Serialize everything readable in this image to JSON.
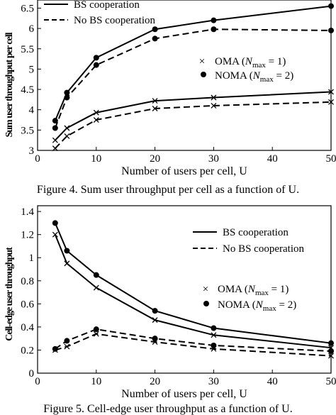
{
  "chart_data": [
    {
      "type": "line",
      "caption": "Figure 4.  Sum user throughput per cell as a function of U.",
      "xlabel": "Number of users per cell, U",
      "ylabel": "Sum user throughput per cell",
      "xlim": [
        0,
        50
      ],
      "ylim": [
        3,
        6.7
      ],
      "xticks": [
        0,
        10,
        20,
        30,
        40,
        50
      ],
      "yticks": [
        3,
        3.5,
        4,
        4.5,
        5,
        5.5,
        6,
        6.5
      ],
      "grid": false,
      "legend_lines": [
        {
          "label": "BS cooperation",
          "style": "solid"
        },
        {
          "label": "No BS cooperation",
          "style": "dashed"
        }
      ],
      "legend_markers": [
        {
          "label": "OMA (N_max = 1)",
          "marker": "x"
        },
        {
          "label": "NOMA (N_max = 2)",
          "marker": "dot"
        }
      ],
      "x": [
        3,
        5,
        10,
        20,
        30,
        50
      ],
      "series": [
        {
          "scheme": "NOMA",
          "style": "solid",
          "marker": "dot",
          "values": [
            3.73,
            4.42,
            5.28,
            5.98,
            6.2,
            6.55
          ]
        },
        {
          "scheme": "NOMA",
          "style": "dashed",
          "marker": "dot",
          "values": [
            3.55,
            4.3,
            5.1,
            5.75,
            5.98,
            5.95
          ]
        },
        {
          "scheme": "OMA",
          "style": "solid",
          "marker": "x",
          "values": [
            3.25,
            3.55,
            3.93,
            4.22,
            4.3,
            4.44
          ]
        },
        {
          "scheme": "OMA",
          "style": "dashed",
          "marker": "x",
          "values": [
            3.05,
            3.35,
            3.75,
            4.03,
            4.1,
            4.19
          ]
        }
      ]
    },
    {
      "type": "line",
      "caption": "Figure 5.  Cell-edge user throughput as a function of U.",
      "xlabel": "Number of users per cell, U",
      "ylabel": "Cell-edge user throughput",
      "xlim": [
        0,
        50
      ],
      "ylim": [
        0,
        1.45
      ],
      "xticks": [
        0,
        10,
        20,
        30,
        40,
        50
      ],
      "yticks": [
        0,
        0.2,
        0.4,
        0.6,
        0.8,
        1,
        1.2,
        1.4
      ],
      "grid": false,
      "legend_lines": [
        {
          "label": "BS cooperation",
          "style": "solid"
        },
        {
          "label": "No BS cooperation",
          "style": "dashed"
        }
      ],
      "legend_markers": [
        {
          "label": "OMA (N_max = 1)",
          "marker": "x"
        },
        {
          "label": "NOMA (N_max = 2)",
          "marker": "dot"
        }
      ],
      "x": [
        3,
        5,
        10,
        20,
        30,
        50
      ],
      "series": [
        {
          "scheme": "NOMA",
          "style": "solid",
          "marker": "dot",
          "values": [
            1.3,
            1.06,
            0.85,
            0.54,
            0.39,
            0.26
          ]
        },
        {
          "scheme": "OMA",
          "style": "solid",
          "marker": "x",
          "values": [
            1.2,
            0.95,
            0.74,
            0.46,
            0.33,
            0.22
          ]
        },
        {
          "scheme": "NOMA",
          "style": "dashed",
          "marker": "dot",
          "values": [
            0.21,
            0.28,
            0.38,
            0.3,
            0.24,
            0.19
          ]
        },
        {
          "scheme": "OMA",
          "style": "dashed",
          "marker": "x",
          "values": [
            0.2,
            0.23,
            0.34,
            0.27,
            0.21,
            0.15
          ]
        }
      ]
    }
  ]
}
